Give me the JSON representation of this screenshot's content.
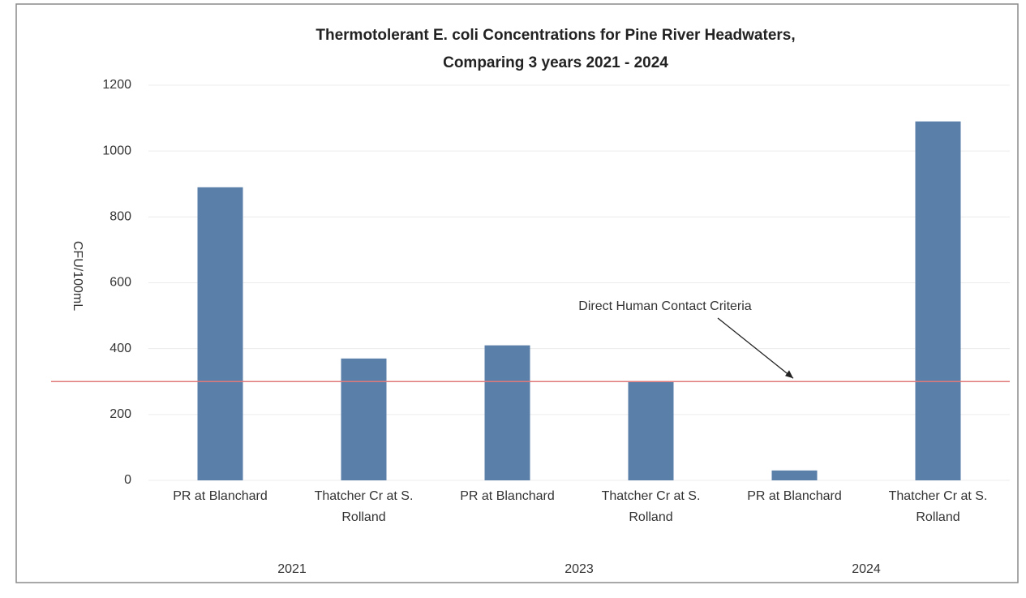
{
  "chart_data": {
    "type": "bar",
    "title": [
      "Thermotolerant E. coli Concentrations for Pine River Headwaters,",
      "Comparing 3 years 2021 - 2024"
    ],
    "y_label": "CFU/100mL",
    "categories": [
      "PR at Blanchard",
      "Thatcher Cr at S. Rolland",
      "PR at Blanchard",
      "Thatcher Cr at S. Rolland",
      "PR at Blanchard",
      "Thatcher Cr at S. Rolland"
    ],
    "groups": [
      "2021",
      "2023",
      "2024"
    ],
    "values": [
      890,
      370,
      410,
      300,
      30,
      1090
    ],
    "color": "#5a7fa8",
    "ylim": [
      0,
      1200
    ],
    "yticks": [
      0,
      200,
      400,
      600,
      800,
      1000,
      1200
    ],
    "grid": true,
    "reference_line": {
      "value": 300,
      "color": "#e07a7a",
      "label": "Direct Human Contact Criteria"
    }
  }
}
